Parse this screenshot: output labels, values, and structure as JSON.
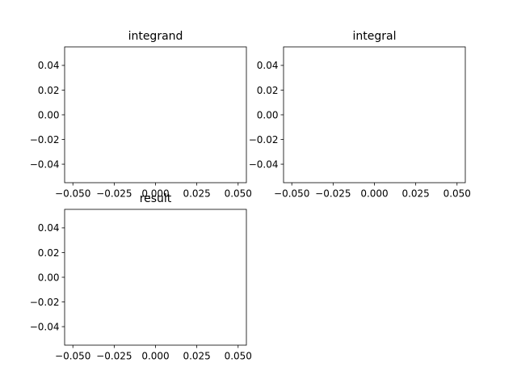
{
  "chart_data": [
    {
      "type": "line",
      "title": "integrand",
      "xlabel": "",
      "ylabel": "",
      "xlim": [
        -0.055,
        0.055
      ],
      "ylim": [
        -0.055,
        0.055
      ],
      "xticks": [
        -0.05,
        -0.025,
        0.0,
        0.025,
        0.05
      ],
      "yticks": [
        -0.04,
        -0.02,
        0.0,
        0.02,
        0.04
      ],
      "xtick_labels": [
        "−0.050",
        "−0.025",
        "0.000",
        "0.025",
        "0.050"
      ],
      "ytick_labels": [
        "−0.04",
        "−0.02",
        "0.00",
        "0.02",
        "0.04"
      ],
      "series": [],
      "grid": false
    },
    {
      "type": "line",
      "title": "integral",
      "xlabel": "",
      "ylabel": "",
      "xlim": [
        -0.055,
        0.055
      ],
      "ylim": [
        -0.055,
        0.055
      ],
      "xticks": [
        -0.05,
        -0.025,
        0.0,
        0.025,
        0.05
      ],
      "yticks": [
        -0.04,
        -0.02,
        0.0,
        0.02,
        0.04
      ],
      "xtick_labels": [
        "−0.050",
        "−0.025",
        "0.000",
        "0.025",
        "0.050"
      ],
      "ytick_labels": [
        "−0.04",
        "−0.02",
        "0.00",
        "0.02",
        "0.04"
      ],
      "series": [],
      "grid": false
    },
    {
      "type": "line",
      "title": "result",
      "xlabel": "",
      "ylabel": "",
      "xlim": [
        -0.055,
        0.055
      ],
      "ylim": [
        -0.055,
        0.055
      ],
      "xticks": [
        -0.05,
        -0.025,
        0.0,
        0.025,
        0.05
      ],
      "yticks": [
        -0.04,
        -0.02,
        0.0,
        0.02,
        0.04
      ],
      "xtick_labels": [
        "−0.050",
        "−0.025",
        "0.000",
        "0.025",
        "0.050"
      ],
      "ytick_labels": [
        "−0.04",
        "−0.02",
        "0.00",
        "0.02",
        "0.04"
      ],
      "series": [],
      "grid": false
    }
  ]
}
